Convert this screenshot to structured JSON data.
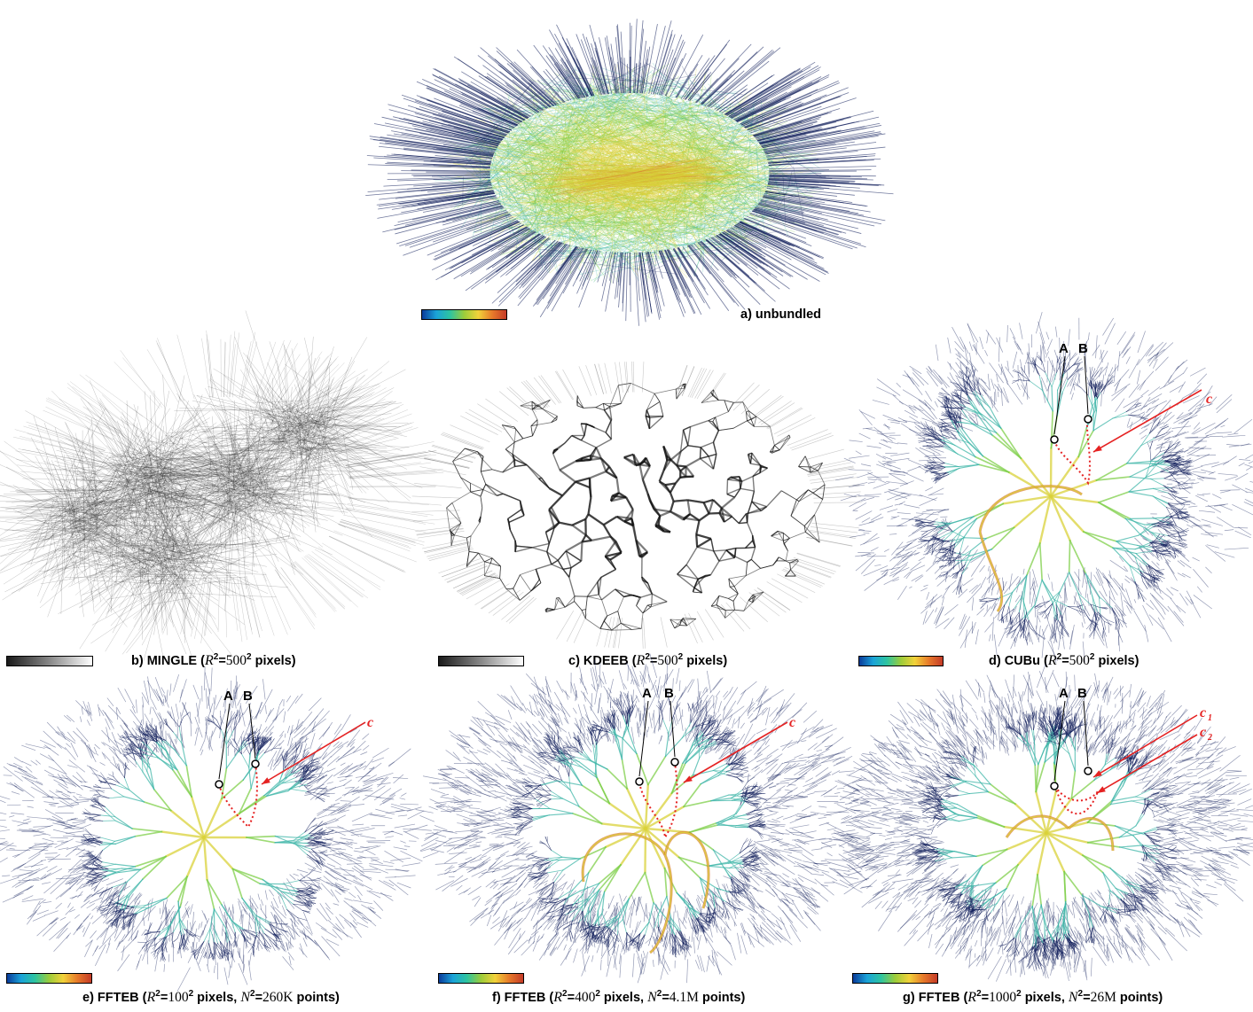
{
  "figure": {
    "panels": [
      {
        "id": "a",
        "caption": {
          "prefix": "a) unbundled",
          "r_value": "",
          "n_value": ""
        },
        "style": "unbundled",
        "colorbar": "color",
        "annotations": {
          "A": "",
          "B": "",
          "c": []
        }
      },
      {
        "id": "b",
        "caption": {
          "prefix": "b) MINGLE (",
          "r_value": "500",
          "n_value": ""
        },
        "style": "mingle",
        "colorbar": "gray",
        "annotations": {
          "A": "",
          "B": "",
          "c": []
        }
      },
      {
        "id": "c",
        "caption": {
          "prefix": "c) KDEEB (",
          "r_value": "500",
          "n_value": ""
        },
        "style": "kdeeb",
        "colorbar": "gray",
        "annotations": {
          "A": "",
          "B": "",
          "c": []
        }
      },
      {
        "id": "d",
        "caption": {
          "prefix": "d) CUBu (",
          "r_value": "500",
          "n_value": ""
        },
        "style": "cubu",
        "colorbar": "color",
        "annotations": {
          "A": "A",
          "B": "B",
          "c": [
            "c"
          ]
        }
      },
      {
        "id": "e",
        "caption": {
          "prefix": "e) FFTEB (",
          "r_value": "100",
          "n_value": "260K"
        },
        "style": "ffteb-low",
        "colorbar": "color",
        "annotations": {
          "A": "A",
          "B": "B",
          "c": [
            "c"
          ]
        }
      },
      {
        "id": "f",
        "caption": {
          "prefix": "f) FFTEB (",
          "r_value": "400",
          "n_value": "4.1M"
        },
        "style": "ffteb-mid",
        "colorbar": "color",
        "annotations": {
          "A": "A",
          "B": "B",
          "c": [
            "c"
          ]
        }
      },
      {
        "id": "g",
        "caption": {
          "prefix": "g) FFTEB (",
          "r_value": "1000",
          "n_value": "26M"
        },
        "style": "ffteb-high",
        "colorbar": "color",
        "annotations": {
          "A": "A",
          "B": "B",
          "c": [
            "c",
            "1",
            "c",
            "2"
          ]
        }
      }
    ],
    "caption_tokens": {
      "r_symbol": "R",
      "n_symbol": "N",
      "squared": "2",
      "eq": "=",
      "pixels": " pixels",
      "points": " points)",
      "close": ")",
      "comma": ", "
    },
    "colors": {
      "dark_blue": "#14215e",
      "teal": "#3fb6a8",
      "green": "#7fcf4a",
      "yellow": "#d9d13a",
      "orange": "#d7792a",
      "red_annotation": "#e52222"
    }
  }
}
